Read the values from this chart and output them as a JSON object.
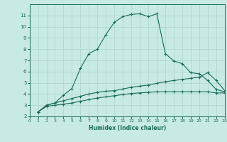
{
  "xlabel": "Humidex (Indice chaleur)",
  "xlim": [
    0,
    23
  ],
  "ylim": [
    2,
    12
  ],
  "yticks": [
    2,
    3,
    4,
    5,
    6,
    7,
    8,
    9,
    10,
    11
  ],
  "xticks": [
    0,
    1,
    2,
    3,
    4,
    5,
    6,
    7,
    8,
    9,
    10,
    11,
    12,
    13,
    14,
    15,
    16,
    17,
    18,
    19,
    20,
    21,
    22,
    23
  ],
  "background_color": "#c8eae4",
  "grid_color": "#b0d8d0",
  "line_color": "#1a6b5a",
  "line1_x": [
    1,
    2,
    3,
    4,
    5,
    6,
    7,
    8,
    9,
    10,
    11,
    12,
    13,
    14,
    15,
    16,
    17,
    18,
    19,
    20,
    21,
    22,
    23
  ],
  "line1_y": [
    2.4,
    3.0,
    3.2,
    3.9,
    4.5,
    6.3,
    7.6,
    8.0,
    9.3,
    10.4,
    10.9,
    11.1,
    11.15,
    10.9,
    11.15,
    7.6,
    6.95,
    6.7,
    5.9,
    5.8,
    5.2,
    4.4,
    4.2
  ],
  "line2_x": [
    1,
    2,
    3,
    4,
    5,
    6,
    7,
    8,
    9,
    10,
    11,
    12,
    13,
    14,
    15,
    16,
    17,
    18,
    19,
    20,
    21,
    22,
    23
  ],
  "line2_y": [
    2.4,
    3.0,
    3.2,
    3.4,
    3.6,
    3.8,
    4.0,
    4.15,
    4.25,
    4.3,
    4.45,
    4.6,
    4.7,
    4.8,
    4.95,
    5.1,
    5.2,
    5.3,
    5.4,
    5.5,
    5.9,
    5.2,
    4.3
  ],
  "line3_x": [
    1,
    2,
    3,
    4,
    5,
    6,
    7,
    8,
    9,
    10,
    11,
    12,
    13,
    14,
    15,
    16,
    17,
    18,
    19,
    20,
    21,
    22,
    23
  ],
  "line3_y": [
    2.4,
    2.9,
    3.0,
    3.1,
    3.2,
    3.35,
    3.5,
    3.65,
    3.75,
    3.85,
    3.95,
    4.05,
    4.1,
    4.15,
    4.2,
    4.2,
    4.2,
    4.2,
    4.2,
    4.2,
    4.2,
    4.1,
    4.1
  ]
}
